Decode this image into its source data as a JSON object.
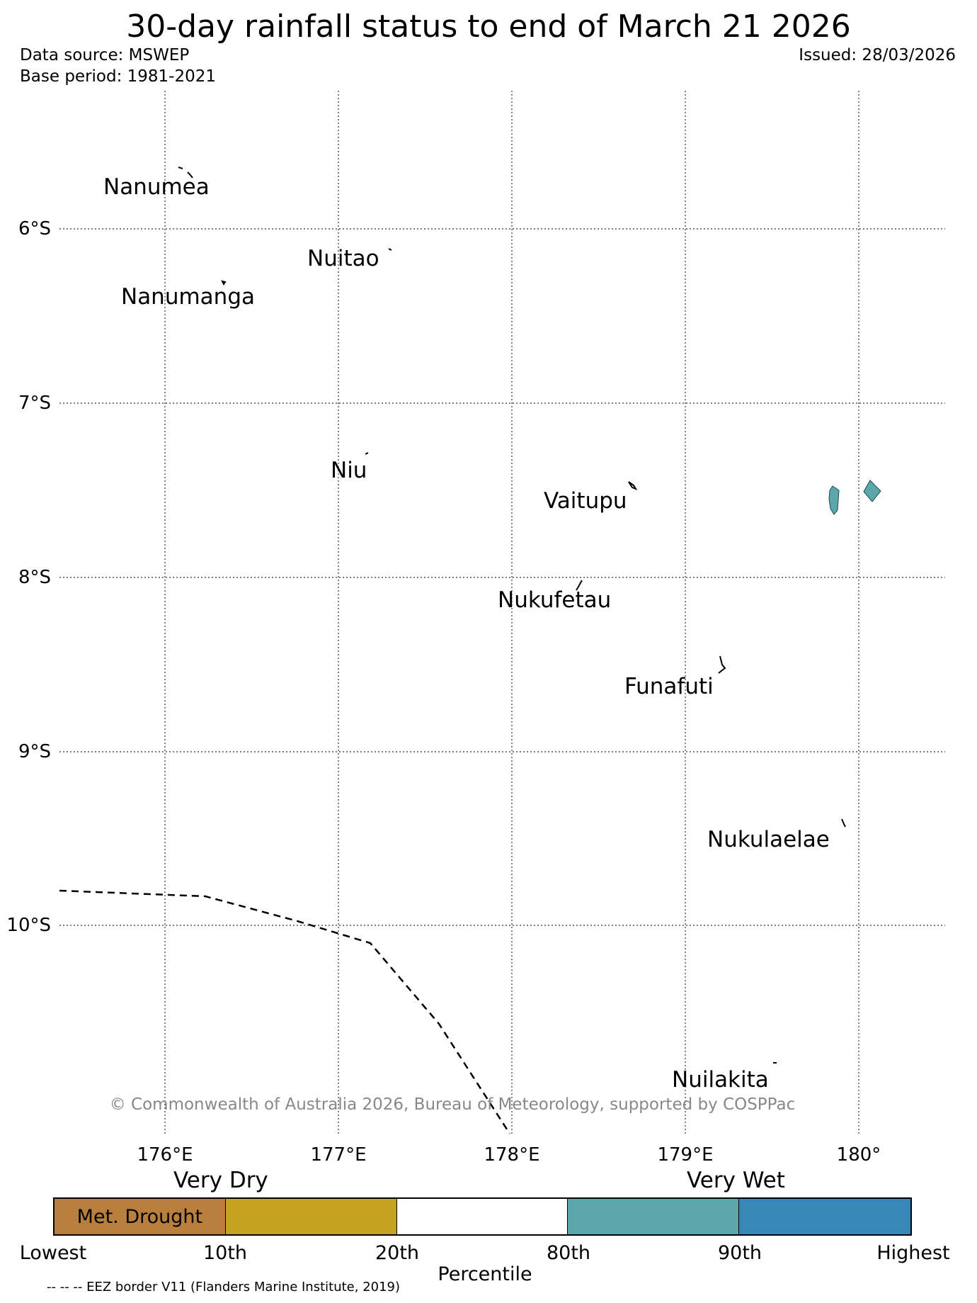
{
  "header": {
    "title": "30-day rainfall status to end of March 21 2026",
    "data_source": "Data source: MSWEP",
    "base_period": "Base period: 1981-2021",
    "issued": "Issued: 28/03/2026"
  },
  "map": {
    "latitude_labels": [
      "6°S",
      "7°S",
      "8°S",
      "9°S",
      "10°S"
    ],
    "longitude_labels": [
      "176°E",
      "177°E",
      "178°E",
      "179°E",
      "180°"
    ],
    "islands": [
      {
        "name": "Nanumea",
        "status": "none"
      },
      {
        "name": "Nuitao",
        "status": "none"
      },
      {
        "name": "Nanumanga",
        "status": "none"
      },
      {
        "name": "Niu",
        "status": "none"
      },
      {
        "name": "Vaitupu",
        "status": "none"
      },
      {
        "name": "Nukufetau",
        "status": "none"
      },
      {
        "name": "Funafuti",
        "status": "none"
      },
      {
        "name": "Nukulaelae",
        "status": "none"
      },
      {
        "name": "Nuilakita",
        "status": "none"
      }
    ],
    "shaded_features_color": "#5ba7ac",
    "copyright": "© Commonwealth of Australia 2026, Bureau of Meteorology, supported by COSPPac"
  },
  "legend": {
    "very_dry": "Very Dry",
    "very_wet": "Very Wet",
    "segments": [
      {
        "label": "Met. Drought",
        "color": "#b97f3c"
      },
      {
        "label": "",
        "color": "#c4a31f"
      },
      {
        "label": "",
        "color": "#ffffff"
      },
      {
        "label": "",
        "color": "#5ba7ac"
      },
      {
        "label": "",
        "color": "#3787b8"
      }
    ],
    "ticks": [
      "Lowest",
      "10th",
      "20th",
      "80th",
      "90th",
      "Highest"
    ],
    "axis_title": "Percentile"
  },
  "footnote": "-- -- -- EEZ border V11 (Flanders Marine Institute, 2019)"
}
